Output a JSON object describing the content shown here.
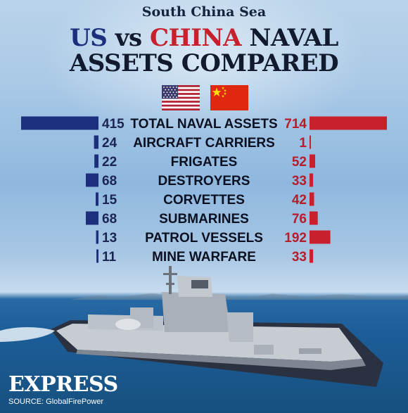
{
  "header": {
    "kicker": "South China Sea",
    "title_us": "US",
    "title_vs": "vs",
    "title_china": "CHINA",
    "title_naval": "NAVAL",
    "title_line2": "ASSETS COMPARED"
  },
  "flags": {
    "us": "us-flag-icon",
    "china": "china-flag-icon"
  },
  "colors": {
    "us_bar": "#1b2f7c",
    "china_bar": "#c8202c",
    "us_text": "#1b2452",
    "china_text": "#b51d2a"
  },
  "chart_data": {
    "type": "bar",
    "orientation": "diverging-horizontal",
    "categories": [
      "TOTAL NAVAL ASSETS",
      "AIRCRAFT CARRIERS",
      "FRIGATES",
      "DESTROYERS",
      "CORVETTES",
      "SUBMARINES",
      "PATROL VESSELS",
      "MINE WARFARE"
    ],
    "series": [
      {
        "country": "US",
        "values": [
          415,
          24,
          22,
          68,
          15,
          68,
          13,
          11
        ]
      },
      {
        "country": "CHINA",
        "values": [
          714,
          1,
          52,
          33,
          42,
          76,
          192,
          33
        ]
      }
    ]
  },
  "footer": {
    "brand": "EXPRESS",
    "source": "SOURCE: GlobalFirePower"
  }
}
